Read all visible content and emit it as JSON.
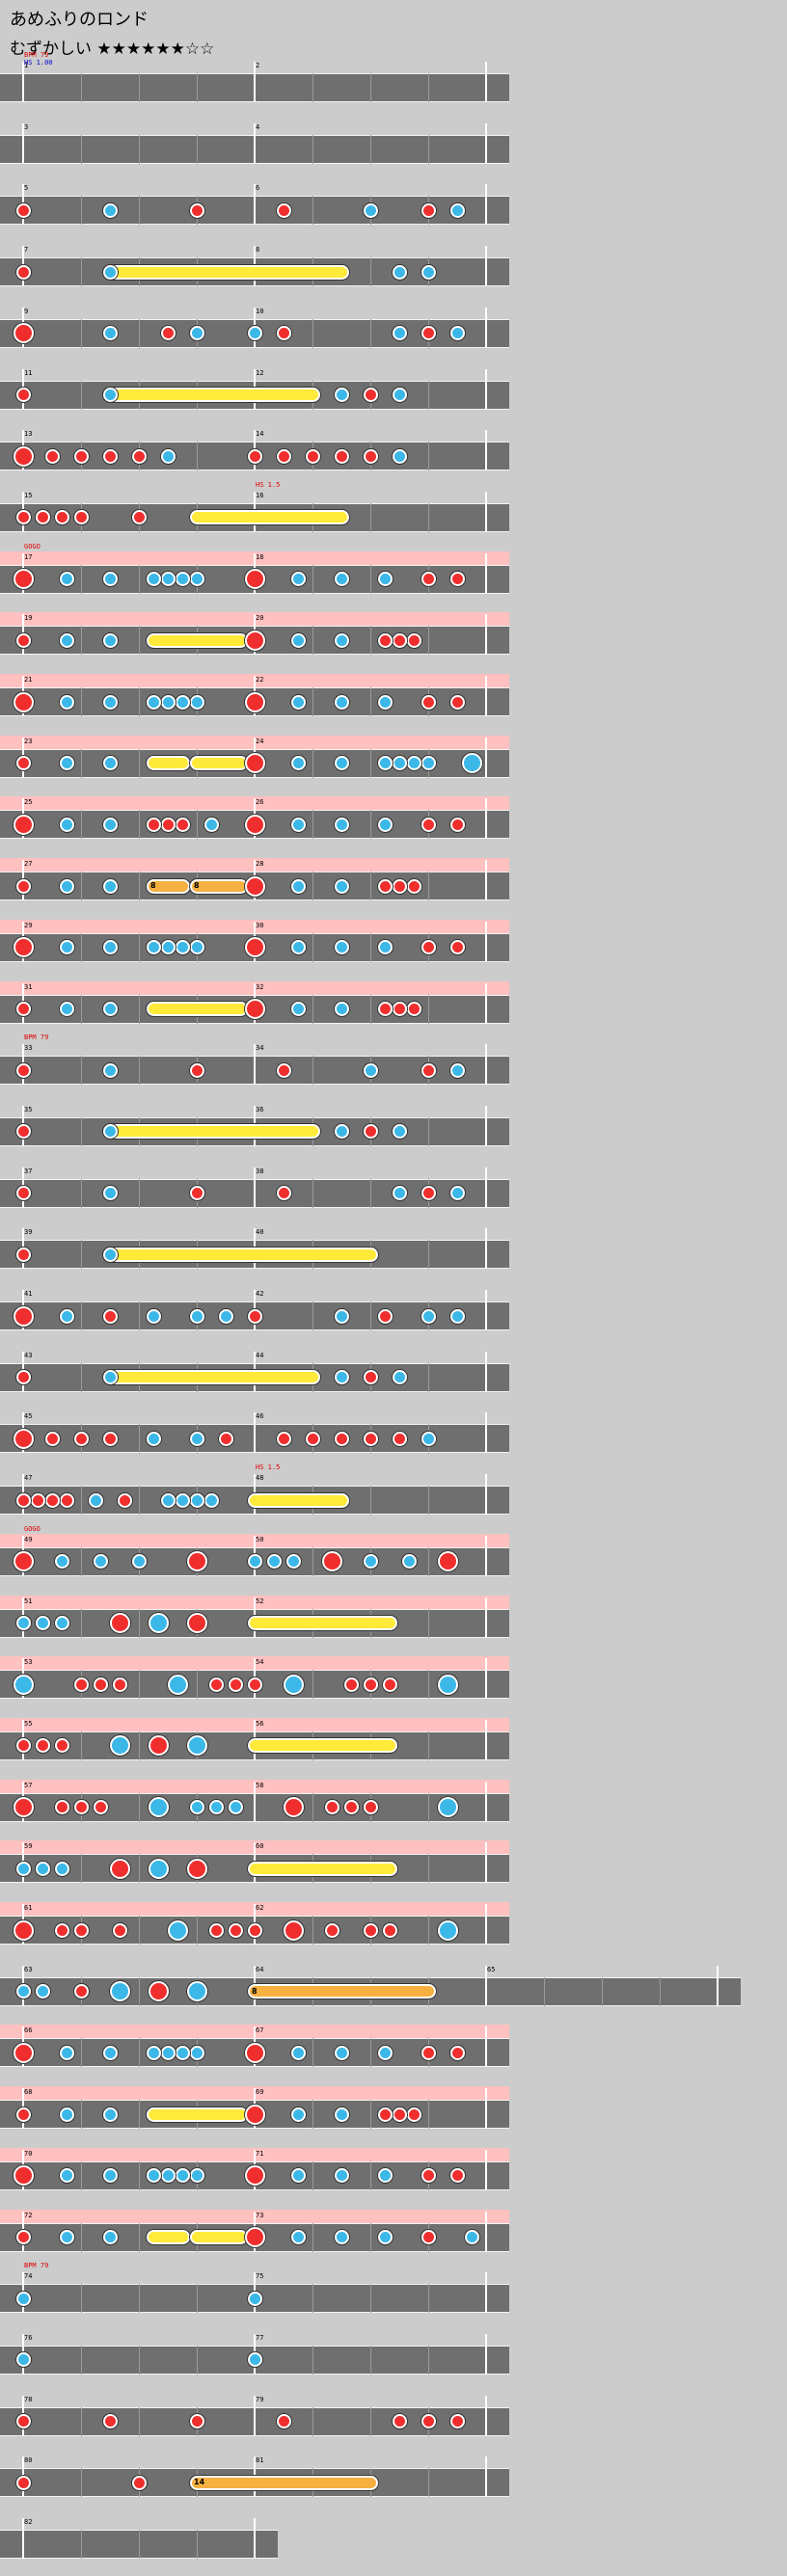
{
  "title": "あめふりのロンド",
  "difficulty": "むずかしい ★★★★★★☆☆",
  "colors": {
    "background": "#cccccc",
    "lane": "#6f6f6f",
    "gogo": "#ffc0c0",
    "don": "#f02e2e",
    "ka": "#3bb8e8",
    "drumroll": "#ffea3a",
    "balloon": "#f5b040"
  },
  "note_legend": {
    "d": "don (small)",
    "D": "don (big)",
    "k": "ka (small)",
    "K": "ka (big)",
    "roll": "drumroll",
    "balloon": "balloon"
  },
  "rows": [
    {
      "gogo": false,
      "measures": [
        {
          "num": "1",
          "steps": 8,
          "notes": "________",
          "events": [
            {
              "text": "BPM 79",
              "color": "red"
            },
            {
              "text": "HS 1.00",
              "color": "blue"
            }
          ]
        },
        {
          "num": "2",
          "steps": 8,
          "notes": "________"
        }
      ]
    },
    {
      "gogo": false,
      "measures": [
        {
          "num": "3",
          "steps": 8,
          "notes": "________"
        },
        {
          "num": "4",
          "steps": 8,
          "notes": "________"
        }
      ]
    },
    {
      "gogo": false,
      "measures": [
        {
          "num": "5",
          "steps": 8,
          "notes": "d__k__d_"
        },
        {
          "num": "6",
          "steps": 8,
          "notes": "_d__k_dk"
        }
      ]
    },
    {
      "gogo": false,
      "measures": [
        {
          "num": "7",
          "steps": 8,
          "notes": "d__k____"
        },
        {
          "num": "8",
          "steps": 8,
          "notes": "_____kk_"
        }
      ],
      "spans": [
        {
          "type": "roll",
          "start": [
            0,
            3
          ],
          "end": [
            1,
            3
          ]
        }
      ]
    },
    {
      "gogo": false,
      "measures": [
        {
          "num": "9",
          "steps": 8,
          "notes": "D__k_dk_"
        },
        {
          "num": "10",
          "steps": 8,
          "notes": "kd___kdk"
        }
      ]
    },
    {
      "gogo": false,
      "measures": [
        {
          "num": "11",
          "steps": 8,
          "notes": "d__k____"
        },
        {
          "num": "12",
          "steps": 8,
          "notes": "___kdk__"
        }
      ],
      "spans": [
        {
          "type": "roll",
          "start": [
            0,
            3
          ],
          "end": [
            1,
            2
          ]
        }
      ]
    },
    {
      "gogo": false,
      "measures": [
        {
          "num": "13",
          "steps": 8,
          "notes": "Dddddk__"
        },
        {
          "num": "14",
          "steps": 8,
          "notes": "dddddk__"
        }
      ]
    },
    {
      "gogo": false,
      "measures": [
        {
          "num": "15",
          "steps": 12,
          "notes": "dddd__d_____"
        },
        {
          "num": "16",
          "steps": 8,
          "notes": "________",
          "events": [
            {
              "text": "HS 1.5",
              "color": "red"
            }
          ]
        }
      ],
      "spans": [
        {
          "type": "roll",
          "start": [
            0,
            9
          ],
          "end": [
            1,
            3
          ]
        }
      ]
    },
    {
      "gogo": true,
      "measures": [
        {
          "num": "17",
          "steps": 16,
          "notes": "D__k__k__kkkk___",
          "events": [
            {
              "text": "GOGO",
              "color": "red"
            }
          ]
        },
        {
          "num": "18",
          "steps": 16,
          "notes": "D__k__k__k__d_d_"
        }
      ]
    },
    {
      "gogo": true,
      "measures": [
        {
          "num": "19",
          "steps": 16,
          "notes": "d__k__k_________"
        },
        {
          "num": "20",
          "steps": 16,
          "notes": "D__k__k__ddd____"
        }
      ],
      "spans": [
        {
          "type": "roll",
          "start": [
            0,
            9
          ],
          "end": [
            0,
            15
          ]
        }
      ]
    },
    {
      "gogo": true,
      "measures": [
        {
          "num": "21",
          "steps": 16,
          "notes": "D__k__k__kkkk___"
        },
        {
          "num": "22",
          "steps": 16,
          "notes": "D__k__k__k__d_d_"
        }
      ]
    },
    {
      "gogo": true,
      "measures": [
        {
          "num": "23",
          "steps": 16,
          "notes": "d__k__k_________"
        },
        {
          "num": "24",
          "steps": 16,
          "notes": "D__k__k__kkkk__K"
        }
      ],
      "spans": [
        {
          "type": "roll",
          "start": [
            0,
            9
          ],
          "end": [
            0,
            11
          ]
        },
        {
          "type": "roll",
          "start": [
            0,
            12
          ],
          "end": [
            0,
            15
          ]
        }
      ]
    },
    {
      "gogo": true,
      "measures": [
        {
          "num": "25",
          "steps": 16,
          "notes": "D__k__k__ddd_k__"
        },
        {
          "num": "26",
          "steps": 16,
          "notes": "D__k__k__k__d_d_"
        }
      ]
    },
    {
      "gogo": true,
      "measures": [
        {
          "num": "27",
          "steps": 16,
          "notes": "d__k__k_________"
        },
        {
          "num": "28",
          "steps": 16,
          "notes": "D__k__k__ddd____"
        }
      ],
      "spans": [
        {
          "type": "balloon",
          "start": [
            0,
            9
          ],
          "end": [
            0,
            11
          ],
          "count": "8"
        },
        {
          "type": "balloon",
          "start": [
            0,
            12
          ],
          "end": [
            0,
            15
          ],
          "count": "8"
        }
      ]
    },
    {
      "gogo": true,
      "measures": [
        {
          "num": "29",
          "steps": 16,
          "notes": "D__k__k__kkkk___"
        },
        {
          "num": "30",
          "steps": 16,
          "notes": "D__k__k__k__d_d_"
        }
      ]
    },
    {
      "gogo": true,
      "measures": [
        {
          "num": "31",
          "steps": 16,
          "notes": "d__k__k_________"
        },
        {
          "num": "32",
          "steps": 16,
          "notes": "D__k__k__ddd____"
        }
      ],
      "spans": [
        {
          "type": "roll",
          "start": [
            0,
            9
          ],
          "end": [
            0,
            15
          ]
        }
      ]
    },
    {
      "gogo": false,
      "measures": [
        {
          "num": "33",
          "steps": 8,
          "notes": "d__k__d_",
          "events": [
            {
              "text": "BPM 79",
              "color": "red"
            }
          ]
        },
        {
          "num": "34",
          "steps": 8,
          "notes": "_d__k_dk"
        }
      ]
    },
    {
      "gogo": false,
      "measures": [
        {
          "num": "35",
          "steps": 8,
          "notes": "d__k____"
        },
        {
          "num": "36",
          "steps": 8,
          "notes": "___kdk__"
        }
      ],
      "spans": [
        {
          "type": "roll",
          "start": [
            0,
            3
          ],
          "end": [
            1,
            2
          ]
        }
      ]
    },
    {
      "gogo": false,
      "measures": [
        {
          "num": "37",
          "steps": 8,
          "notes": "d__k__d_"
        },
        {
          "num": "38",
          "steps": 8,
          "notes": "_d___kdk"
        }
      ]
    },
    {
      "gogo": false,
      "measures": [
        {
          "num": "39",
          "steps": 8,
          "notes": "d__k____"
        },
        {
          "num": "40",
          "steps": 6,
          "notes": "______"
        }
      ],
      "spans": [
        {
          "type": "roll",
          "start": [
            0,
            3
          ],
          "end": [
            1,
            3
          ]
        }
      ]
    },
    {
      "gogo": false,
      "measures": [
        {
          "num": "41",
          "steps": 16,
          "notes": "D__k__d__k__k_k_"
        },
        {
          "num": "42",
          "steps": 16,
          "notes": "d_____k__d__k_k_"
        }
      ]
    },
    {
      "gogo": false,
      "measures": [
        {
          "num": "43",
          "steps": 8,
          "notes": "d__k____"
        },
        {
          "num": "44",
          "steps": 8,
          "notes": "___kdk__"
        }
      ],
      "spans": [
        {
          "type": "roll",
          "start": [
            0,
            3
          ],
          "end": [
            1,
            2
          ]
        }
      ]
    },
    {
      "gogo": false,
      "measures": [
        {
          "num": "45",
          "steps": 16,
          "notes": "D_d_d_d__k__k_d_"
        },
        {
          "num": "46",
          "steps": 16,
          "notes": "__d_d_d_d_d_k___"
        }
      ]
    },
    {
      "gogo": false,
      "measures": [
        {
          "num": "47",
          "steps": 16,
          "notes": "dddd_k_d__kkkk__"
        },
        {
          "num": "48",
          "steps": 8,
          "notes": "________",
          "events": [
            {
              "text": "HS 1.5",
              "color": "red"
            }
          ]
        }
      ],
      "spans": [
        {
          "type": "roll",
          "start": [
            1,
            0
          ],
          "end": [
            1,
            3
          ]
        }
      ]
    },
    {
      "gogo": true,
      "measures": [
        {
          "num": "49",
          "steps": 12,
          "notes": "D_k_k_k__D__",
          "events": [
            {
              "text": "GOGO",
              "color": "red"
            }
          ]
        },
        {
          "num": "50",
          "steps": 12,
          "notes": "kkk_D_k_k_D_"
        }
      ]
    },
    {
      "gogo": true,
      "measures": [
        {
          "num": "51",
          "steps": 12,
          "notes": "kkk__D_K_D__"
        },
        {
          "num": "52",
          "steps": 12,
          "notes": "____________"
        }
      ],
      "spans": [
        {
          "type": "roll",
          "start": [
            1,
            0
          ],
          "end": [
            1,
            7
          ]
        }
      ]
    },
    {
      "gogo": true,
      "measures": [
        {
          "num": "53",
          "steps": 12,
          "notes": "K__ddd__K_dd"
        },
        {
          "num": "54",
          "steps": 12,
          "notes": "d_K__ddd__K_"
        }
      ]
    },
    {
      "gogo": true,
      "measures": [
        {
          "num": "55",
          "steps": 12,
          "notes": "ddd__K_D_K__"
        },
        {
          "num": "56",
          "steps": 12,
          "notes": "____________"
        }
      ],
      "spans": [
        {
          "type": "roll",
          "start": [
            1,
            0
          ],
          "end": [
            1,
            7
          ]
        }
      ]
    },
    {
      "gogo": true,
      "measures": [
        {
          "num": "57",
          "steps": 12,
          "notes": "D_ddd__K_kkk"
        },
        {
          "num": "58",
          "steps": 12,
          "notes": "__D_ddd___K_"
        }
      ]
    },
    {
      "gogo": true,
      "measures": [
        {
          "num": "59",
          "steps": 12,
          "notes": "kkk__D_K_D__"
        },
        {
          "num": "60",
          "steps": 12,
          "notes": "____________"
        }
      ],
      "spans": [
        {
          "type": "roll",
          "start": [
            1,
            0
          ],
          "end": [
            1,
            7
          ]
        }
      ]
    },
    {
      "gogo": true,
      "measures": [
        {
          "num": "61",
          "steps": 12,
          "notes": "D_dd_d__K_dd"
        },
        {
          "num": "62",
          "steps": 12,
          "notes": "d_D_d_dd__K_"
        }
      ]
    },
    {
      "gogo": false,
      "measures": [
        {
          "num": "63",
          "steps": 12,
          "notes": "kk_d_K_D_K__"
        },
        {
          "num": "64",
          "steps": 8,
          "notes": "________"
        },
        {
          "num": "65",
          "steps": 8,
          "notes": "________"
        }
      ],
      "spans": [
        {
          "type": "balloon",
          "start": [
            1,
            0
          ],
          "end": [
            1,
            6
          ],
          "count": "8"
        }
      ]
    },
    {
      "gogo": true,
      "measures": [
        {
          "num": "66",
          "steps": 16,
          "notes": "D__k__k__kkkk___"
        },
        {
          "num": "67",
          "steps": 16,
          "notes": "D__k__k__k__d_d_"
        }
      ]
    },
    {
      "gogo": true,
      "measures": [
        {
          "num": "68",
          "steps": 16,
          "notes": "d__k__k_________"
        },
        {
          "num": "69",
          "steps": 16,
          "notes": "D__k__k__ddd____"
        }
      ],
      "spans": [
        {
          "type": "roll",
          "start": [
            0,
            9
          ],
          "end": [
            0,
            15
          ]
        }
      ]
    },
    {
      "gogo": true,
      "measures": [
        {
          "num": "70",
          "steps": 16,
          "notes": "D__k__k__kkkk___"
        },
        {
          "num": "71",
          "steps": 16,
          "notes": "D__k__k__k__d_d_"
        }
      ]
    },
    {
      "gogo": true,
      "measures": [
        {
          "num": "72",
          "steps": 16,
          "notes": "d__k__k_________"
        },
        {
          "num": "73",
          "steps": 16,
          "notes": "D__k__k__k__d__k"
        }
      ],
      "spans": [
        {
          "type": "roll",
          "start": [
            0,
            9
          ],
          "end": [
            0,
            11
          ]
        },
        {
          "type": "roll",
          "start": [
            0,
            12
          ],
          "end": [
            0,
            15
          ]
        }
      ]
    },
    {
      "gogo": false,
      "measures": [
        {
          "num": "74",
          "steps": 8,
          "notes": "k_______",
          "events": [
            {
              "text": "BPM 79",
              "color": "red"
            }
          ]
        },
        {
          "num": "75",
          "steps": 8,
          "notes": "k_______"
        }
      ]
    },
    {
      "gogo": false,
      "measures": [
        {
          "num": "76",
          "steps": 8,
          "notes": "k_______"
        },
        {
          "num": "77",
          "steps": 8,
          "notes": "k_______"
        }
      ]
    },
    {
      "gogo": false,
      "measures": [
        {
          "num": "78",
          "steps": 8,
          "notes": "d__d__d_"
        },
        {
          "num": "79",
          "steps": 8,
          "notes": "_d___ddd"
        }
      ]
    },
    {
      "gogo": false,
      "measures": [
        {
          "num": "80",
          "steps": 8,
          "notes": "d___d___"
        },
        {
          "num": "81",
          "steps": 8,
          "notes": "________"
        }
      ],
      "spans": [
        {
          "type": "balloon",
          "start": [
            0,
            6
          ],
          "end": [
            1,
            4
          ],
          "count": "14"
        }
      ]
    },
    {
      "gogo": false,
      "measures": [
        {
          "num": "82",
          "steps": 8,
          "notes": "________"
        }
      ]
    }
  ]
}
